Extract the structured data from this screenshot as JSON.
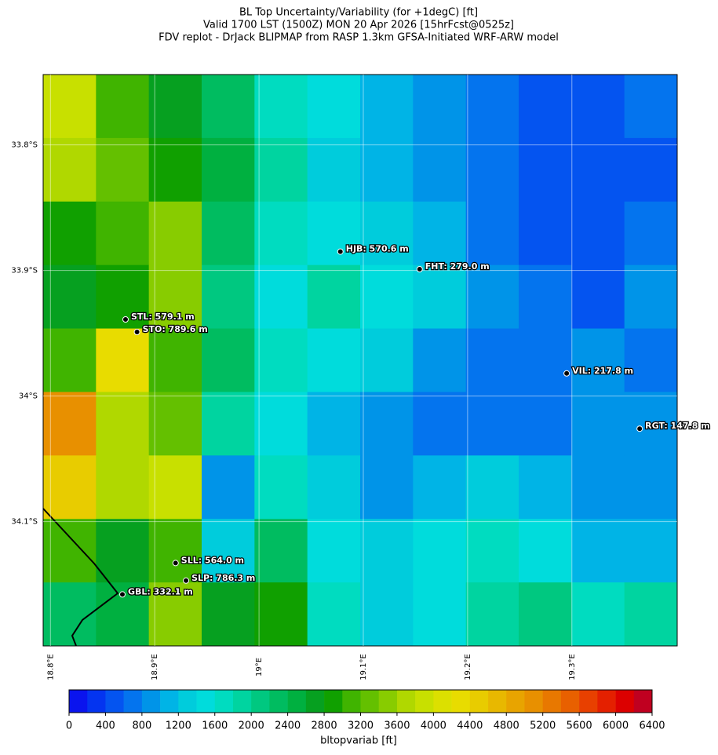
{
  "chart_data": {
    "type": "map",
    "title": [
      "BL Top Uncertainty/Variability (for +1degC) [ft]",
      "Valid 1700 LST (1500Z) MON 20 Apr 2026 [15hrFcst@0525z]",
      "FDV replot - DrJack BLIPMAP from RASP 1.3km GFSA-Initiated WRF-ARW model"
    ],
    "xlim": [
      18.793,
      19.401
    ],
    "ylim": [
      -33.744,
      -34.199
    ],
    "xticks": [
      {
        "value": 18.8,
        "label": "18.8°E"
      },
      {
        "value": 18.9,
        "label": "18.9°E"
      },
      {
        "value": 19.0,
        "label": "19°E"
      },
      {
        "value": 19.1,
        "label": "19.1°E"
      },
      {
        "value": 19.2,
        "label": "19.2°E"
      },
      {
        "value": 19.3,
        "label": "19.3°E"
      }
    ],
    "yticks": [
      {
        "value": -33.8,
        "label": "33.8°S"
      },
      {
        "value": -33.9,
        "label": "33.9°S"
      },
      {
        "value": -34.0,
        "label": "34°S"
      },
      {
        "value": -34.1,
        "label": "34.1°S"
      }
    ],
    "grid": [
      [
        3800,
        3000,
        2600,
        2200,
        1600,
        1400,
        1000,
        800,
        600,
        400,
        500,
        600
      ],
      [
        3600,
        3200,
        2800,
        2400,
        1800,
        1200,
        1000,
        900,
        600,
        400,
        400,
        500
      ],
      [
        2800,
        3000,
        3400,
        2200,
        1600,
        1400,
        1200,
        1000,
        700,
        500,
        400,
        600
      ],
      [
        2600,
        2800,
        3400,
        2000,
        1400,
        1800,
        1400,
        1300,
        800,
        600,
        500,
        800
      ],
      [
        3000,
        4200,
        3000,
        2200,
        1600,
        1400,
        1200,
        800,
        700,
        700,
        900,
        600
      ],
      [
        5000,
        3600,
        3200,
        1800,
        1400,
        1000,
        800,
        700,
        600,
        700,
        800,
        900
      ],
      [
        4400,
        3600,
        3800,
        800,
        1600,
        1200,
        900,
        1000,
        1300,
        1000,
        900,
        800
      ],
      [
        3000,
        2600,
        3000,
        1200,
        2200,
        1400,
        1200,
        1400,
        1600,
        1400,
        1000,
        1000
      ],
      [
        2200,
        2400,
        3400,
        2600,
        2800,
        1600,
        1200,
        1400,
        1800,
        2000,
        1600,
        1800
      ]
    ],
    "stations": [
      {
        "label": "HJB: 570.6 m",
        "lon": 19.078,
        "lat": -33.885
      },
      {
        "label": "FHT: 279.0 m",
        "lon": 19.154,
        "lat": -33.899
      },
      {
        "label": "STL: 579.1 m",
        "lon": 18.872,
        "lat": -33.939
      },
      {
        "label": "STO: 789.6 m",
        "lon": 18.883,
        "lat": -33.949
      },
      {
        "label": "VIL: 217.8 m",
        "lon": 19.295,
        "lat": -33.982
      },
      {
        "label": "RGT: 147.8 m",
        "lon": 19.365,
        "lat": -34.026
      },
      {
        "label": "SLL: 564.0 m",
        "lon": 18.92,
        "lat": -34.133
      },
      {
        "label": "SLP: 786.3 m",
        "lon": 18.93,
        "lat": -34.147
      },
      {
        "label": "GBL: 332.1 m",
        "lon": 18.869,
        "lat": -34.158
      }
    ],
    "colorbar": {
      "label": "bltopvariab [ft]",
      "bins": [
        0,
        200,
        400,
        600,
        800,
        1000,
        1200,
        1400,
        1600,
        1800,
        2000,
        2200,
        2400,
        2600,
        2800,
        3000,
        3200,
        3400,
        3600,
        3800,
        4000,
        4200,
        4400,
        4600,
        4800,
        5000,
        5200,
        5400,
        5600,
        5800,
        6000,
        6200,
        6400
      ],
      "colors": [
        "#0a14ee",
        "#0434f0",
        "#0454f0",
        "#0474ee",
        "#0094e8",
        "#00b4e6",
        "#00ccdc",
        "#00dcdc",
        "#00dcc0",
        "#00d4a0",
        "#00c880",
        "#00bc60",
        "#00b040",
        "#06a020",
        "#10a000",
        "#40b400",
        "#64c000",
        "#88cc00",
        "#b0d800",
        "#c8e000",
        "#dce000",
        "#e8dc00",
        "#e8cc00",
        "#e8b800",
        "#e8a400",
        "#e89000",
        "#e87800",
        "#e86000",
        "#e84000",
        "#e42000",
        "#dc0000",
        "#c00020"
      ],
      "ticks": [
        0,
        400,
        800,
        1200,
        1600,
        2000,
        2400,
        2800,
        3200,
        3600,
        4000,
        4400,
        4800,
        5200,
        5600,
        6000,
        6400
      ]
    }
  }
}
